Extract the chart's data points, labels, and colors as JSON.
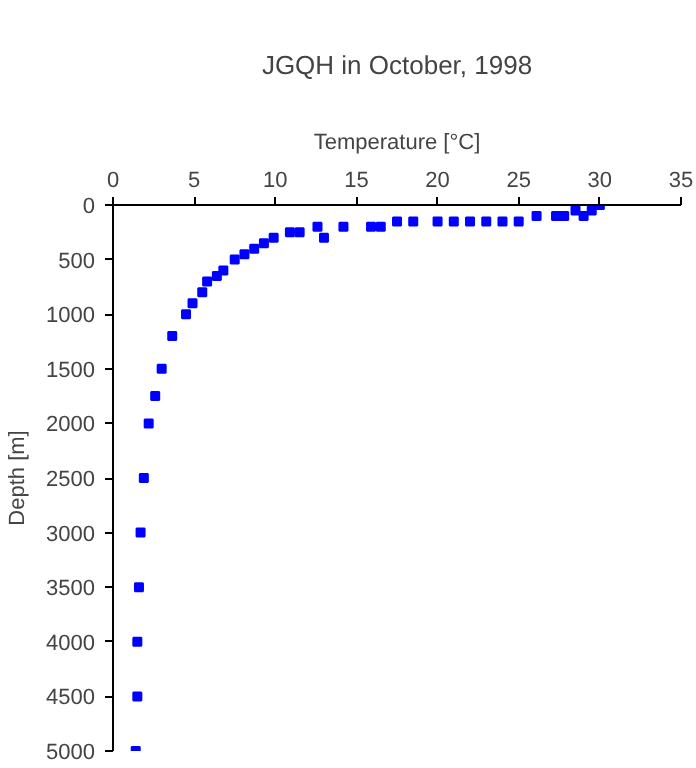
{
  "chart_data": {
    "type": "scatter",
    "title": "JGQH in October, 1998",
    "xlabel": "Temperature [°C]",
    "ylabel": "Depth [m]",
    "x": [
      1.4,
      1.5,
      1.5,
      1.6,
      1.7,
      1.9,
      2.2,
      2.6,
      3.0,
      3.65,
      4.5,
      4.9,
      5.5,
      5.8,
      6.4,
      6.8,
      7.5,
      8.1,
      8.7,
      9.3,
      9.9,
      10.9,
      11.5,
      12.6,
      13.0,
      14.2,
      15.9,
      16.5,
      17.5,
      18.5,
      20.0,
      21.0,
      22.0,
      23.0,
      24.0,
      25.0,
      26.1,
      27.3,
      27.8,
      28.5,
      29.0,
      29.5,
      30.0
    ],
    "series": [
      {
        "color": "#0000ff",
        "values": [
          5000,
          4500,
          4000,
          3500,
          3000,
          2500,
          2000,
          1750,
          1500,
          1200,
          1000,
          900,
          800,
          700,
          650,
          600,
          500,
          450,
          400,
          350,
          300,
          250,
          250,
          200,
          300,
          200,
          200,
          200,
          150,
          150,
          150,
          150,
          150,
          150,
          150,
          150,
          100,
          100,
          100,
          50,
          100,
          50,
          0
        ]
      }
    ],
    "xlim": [
      0,
      35
    ],
    "xticks": [
      0,
      5,
      10,
      15,
      20,
      25,
      30,
      35
    ],
    "ylim": [
      5000,
      0
    ],
    "yticks": [
      0,
      500,
      1000,
      1500,
      2000,
      2500,
      3000,
      3500,
      4000,
      4500,
      5000
    ],
    "grid": false,
    "marker": "square"
  }
}
